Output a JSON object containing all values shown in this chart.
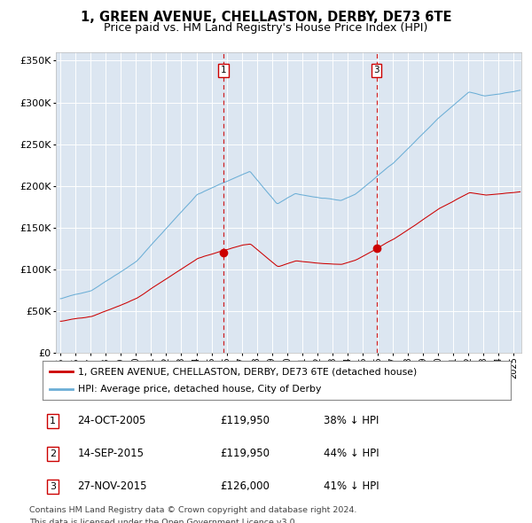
{
  "title": "1, GREEN AVENUE, CHELLASTON, DERBY, DE73 6TE",
  "subtitle": "Price paid vs. HM Land Registry's House Price Index (HPI)",
  "legend_line1": "1, GREEN AVENUE, CHELLASTON, DERBY, DE73 6TE (detached house)",
  "legend_line2": "HPI: Average price, detached house, City of Derby",
  "table": [
    {
      "num": "1",
      "date": "24-OCT-2005",
      "price": "£119,950",
      "pct": "38% ↓ HPI"
    },
    {
      "num": "2",
      "date": "14-SEP-2015",
      "price": "£119,950",
      "pct": "44% ↓ HPI"
    },
    {
      "num": "3",
      "date": "27-NOV-2015",
      "price": "£126,000",
      "pct": "41% ↓ HPI"
    }
  ],
  "footnote1": "Contains HM Land Registry data © Crown copyright and database right 2024.",
  "footnote2": "This data is licensed under the Open Government Licence v3.0.",
  "sale1_year": 2005.81,
  "sale1_price": 119950,
  "sale3_year": 2015.91,
  "sale3_price": 126000,
  "hpi_color": "#6baed6",
  "property_color": "#cc0000",
  "vline_color": "#cc0000",
  "plot_bg": "#dce6f1",
  "ylim": [
    0,
    360000
  ],
  "yticks": [
    0,
    50000,
    100000,
    150000,
    200000,
    250000,
    300000,
    350000
  ],
  "xmin": 1994.7,
  "xmax": 2025.5,
  "title_fontsize": 10.5,
  "subtitle_fontsize": 9.5
}
